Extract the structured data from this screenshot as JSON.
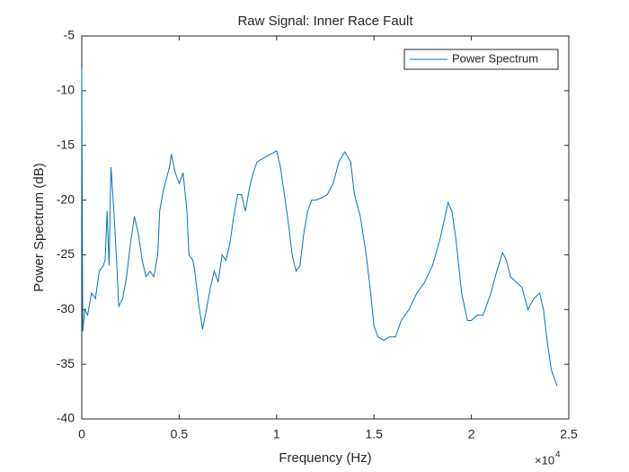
{
  "chart_data": {
    "type": "line",
    "title": "Raw Signal: Inner Race Fault",
    "x_label": "Frequency (Hz)",
    "y_label": "Power Spectrum (dB)",
    "x_multiplier": "×10",
    "x_multiplier_exponent": "4",
    "legend": "northeast",
    "xlim": [
      0,
      25000
    ],
    "ylim": [
      -40,
      -5
    ],
    "xticks": [
      0,
      {
        "value": 5000,
        "label": "0.5"
      },
      {
        "value": 10000,
        "label": "1"
      },
      {
        "value": 15000,
        "label": "1.5"
      },
      {
        "value": 20000,
        "label": "2"
      },
      {
        "value": 25000,
        "label": "2.5"
      }
    ],
    "yticks": [
      -40,
      -35,
      -30,
      -25,
      -20,
      -15,
      -10,
      -5
    ],
    "x": [
      0,
      50,
      150,
      300,
      500,
      700,
      900,
      1100,
      1200,
      1300,
      1400,
      1500,
      1650,
      1800,
      1900,
      2100,
      2300,
      2500,
      2700,
      2900,
      3100,
      3300,
      3500,
      3700,
      3900,
      4000,
      4200,
      4500,
      4600,
      4800,
      5000,
      5200,
      5400,
      5500,
      5700,
      5800,
      6000,
      6200,
      6400,
      6600,
      6800,
      7000,
      7200,
      7400,
      7600,
      7800,
      8000,
      8200,
      8400,
      8600,
      8800,
      9000,
      9300,
      9700,
      10000,
      10200,
      10400,
      10600,
      10800,
      11000,
      11200,
      11400,
      11600,
      11800,
      12000,
      12300,
      12600,
      12900,
      13200,
      13500,
      13800,
      14000,
      14300,
      14600,
      14800,
      15000,
      15200,
      15500,
      15800,
      16100,
      16400,
      16800,
      17200,
      17600,
      18000,
      18400,
      18800,
      19000,
      19200,
      19500,
      19800,
      20000,
      20300,
      20600,
      21000,
      21300,
      21600,
      21800,
      22000,
      22300,
      22600,
      22900,
      23200,
      23500,
      23700,
      23900,
      24100,
      24300,
      24400
    ],
    "series": [
      {
        "name": "Power Spectrum",
        "color": "#0072BD",
        "values": [
          -8,
          -32,
          -30,
          -30.5,
          -28.5,
          -29,
          -26.5,
          -26,
          -25.5,
          -21,
          -26,
          -17,
          -21,
          -26,
          -29.7,
          -29,
          -27,
          -24,
          -21.5,
          -23,
          -25.5,
          -27,
          -26.5,
          -27,
          -25,
          -21,
          -19,
          -17,
          -15.8,
          -17.5,
          -18.5,
          -17.5,
          -21,
          -25,
          -25.5,
          -26.5,
          -29.5,
          -31.8,
          -30,
          -28,
          -26.5,
          -27.5,
          -25,
          -25.5,
          -24,
          -21.5,
          -19.5,
          -19.5,
          -21,
          -19,
          -17.5,
          -16.5,
          -16.2,
          -15.8,
          -15.5,
          -17,
          -19.5,
          -22,
          -25,
          -26.5,
          -26,
          -23,
          -21,
          -20,
          -20,
          -19.8,
          -19.5,
          -18.5,
          -16.5,
          -15.6,
          -16.5,
          -19.5,
          -21.5,
          -25,
          -28,
          -31.5,
          -32.5,
          -32.8,
          -32.5,
          -32.5,
          -31,
          -30,
          -28.5,
          -27.5,
          -26,
          -23.5,
          -20.2,
          -21,
          -23.5,
          -28.5,
          -31,
          -31,
          -30.5,
          -30.5,
          -28.5,
          -26.5,
          -24.8,
          -25.5,
          -27,
          -27.5,
          -28,
          -30,
          -29,
          -28.5,
          -30,
          -33,
          -35.5,
          -36.5,
          -37
        ]
      }
    ]
  }
}
